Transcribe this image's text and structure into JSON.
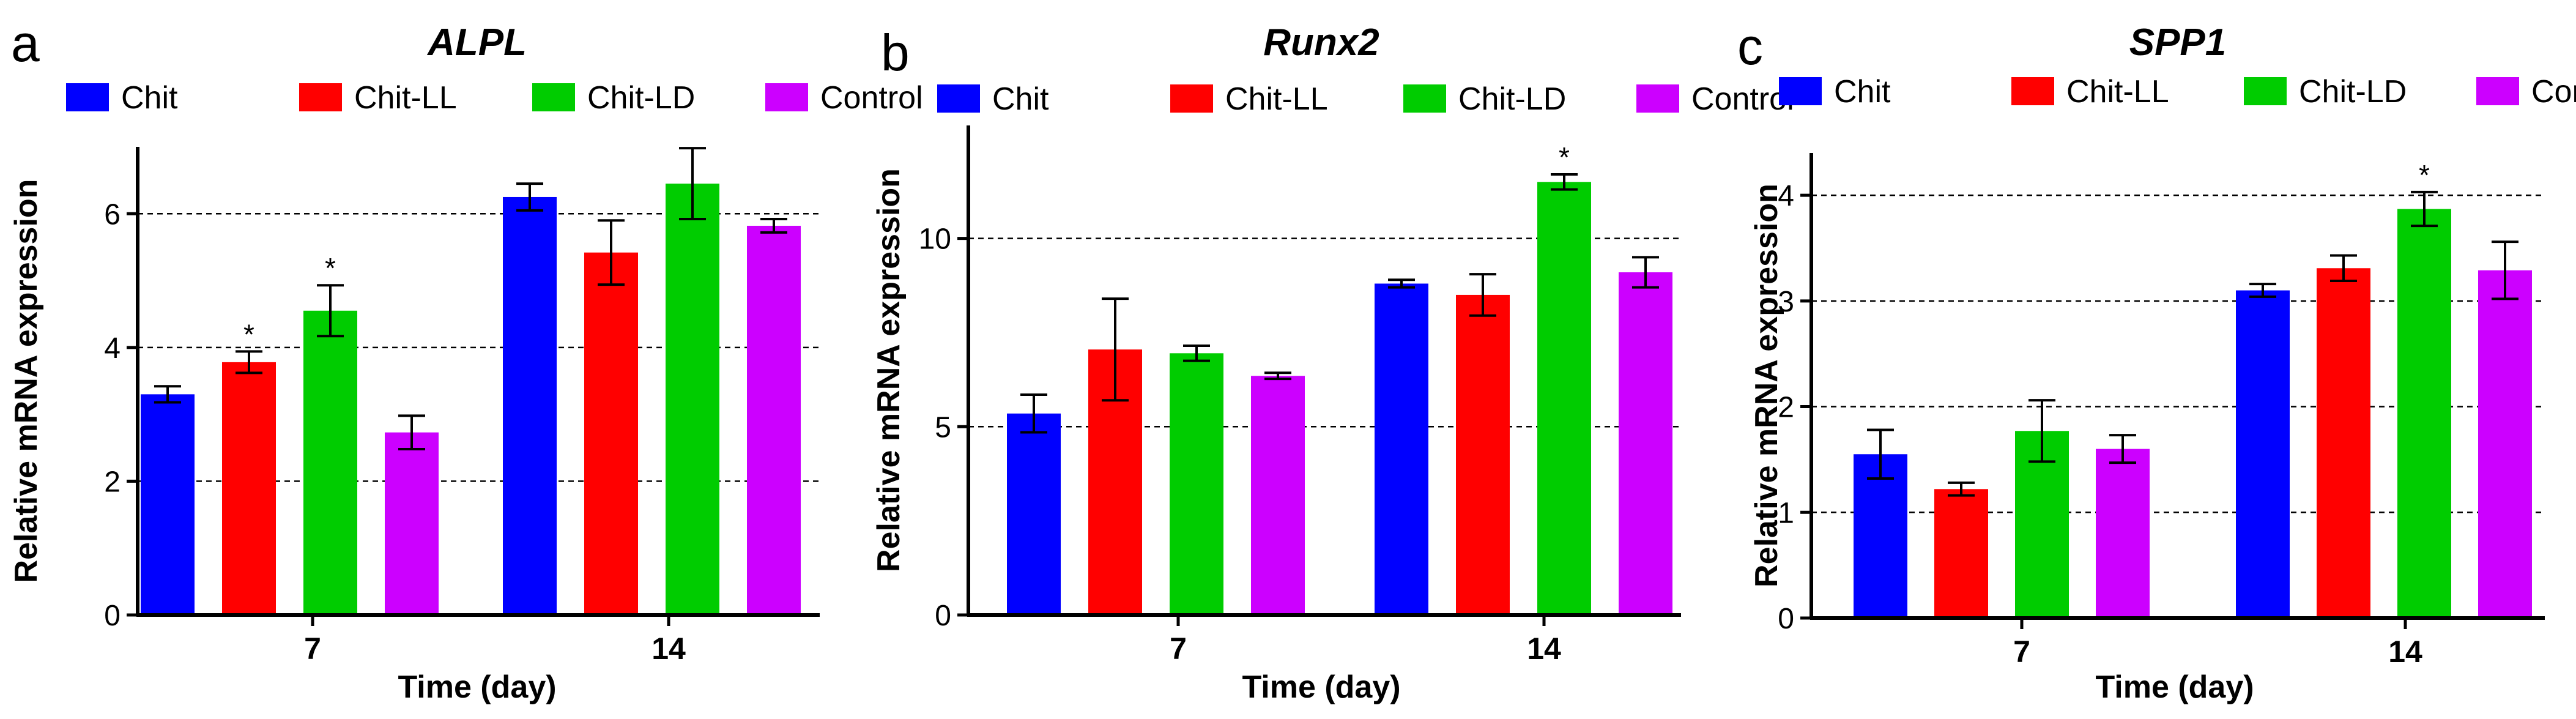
{
  "figure": {
    "series_colors": [
      "#0000FF",
      "#FF0000",
      "#00CC00",
      "#CC00FF"
    ]
  },
  "chart_data": [
    {
      "type": "bar",
      "panel_label": "a",
      "title": "ALPL",
      "xlabel": "Time (day)",
      "ylabel": "Relative mRNA expression",
      "categories": [
        "7",
        "14"
      ],
      "ylim": [
        0,
        7
      ],
      "yticks": [
        0,
        2,
        4,
        6
      ],
      "ytick_labels": [
        "0",
        "2",
        "4",
        "6"
      ],
      "gridlines": [
        2,
        4,
        6
      ],
      "legend_position": "top",
      "series": [
        {
          "name": "Chit",
          "values": [
            3.3,
            6.25
          ],
          "errors": [
            0.12,
            0.2
          ],
          "significant": [
            false,
            false
          ]
        },
        {
          "name": "Chit-LL",
          "values": [
            3.78,
            5.42
          ],
          "errors": [
            0.16,
            0.48
          ],
          "significant": [
            true,
            false
          ]
        },
        {
          "name": "Chit-LD",
          "values": [
            4.55,
            6.45
          ],
          "errors": [
            0.38,
            0.53
          ],
          "significant": [
            true,
            false
          ]
        },
        {
          "name": "Control",
          "values": [
            2.73,
            5.82
          ],
          "errors": [
            0.25,
            0.1
          ],
          "significant": [
            false,
            false
          ]
        }
      ],
      "significance_symbol": "*"
    },
    {
      "type": "bar",
      "panel_label": "b",
      "title": "Runx2",
      "xlabel": "Time (day)",
      "ylabel": "Relative mRNA expression",
      "categories": [
        "7",
        "14"
      ],
      "ylim": [
        0,
        13
      ],
      "yticks": [
        0,
        5,
        10
      ],
      "ytick_labels": [
        "0",
        "5",
        "10"
      ],
      "gridlines": [
        5,
        10
      ],
      "legend_position": "top",
      "series": [
        {
          "name": "Chit",
          "values": [
            5.35,
            8.8
          ],
          "errors": [
            0.5,
            0.1
          ],
          "significant": [
            false,
            false
          ]
        },
        {
          "name": "Chit-LL",
          "values": [
            7.05,
            8.5
          ],
          "errors": [
            1.35,
            0.55
          ],
          "significant": [
            false,
            false
          ]
        },
        {
          "name": "Chit-LD",
          "values": [
            6.95,
            11.5
          ],
          "errors": [
            0.2,
            0.2
          ],
          "significant": [
            false,
            true
          ]
        },
        {
          "name": "Control",
          "values": [
            6.35,
            9.1
          ],
          "errors": [
            0.08,
            0.4
          ],
          "significant": [
            false,
            false
          ]
        }
      ],
      "significance_symbol": "*"
    },
    {
      "type": "bar",
      "panel_label": "c",
      "title": "SPP1",
      "xlabel": "Time (day)",
      "ylabel": "Relative mRNA expression",
      "categories": [
        "7",
        "14"
      ],
      "ylim": [
        0,
        4.4
      ],
      "yticks": [
        0,
        1,
        2,
        3,
        4
      ],
      "ytick_labels": [
        "0",
        "1",
        "2",
        "3",
        "4"
      ],
      "gridlines": [
        1,
        2,
        3,
        4
      ],
      "legend_position": "top",
      "series": [
        {
          "name": "Chit",
          "values": [
            1.55,
            3.1
          ],
          "errors": [
            0.23,
            0.06
          ],
          "significant": [
            false,
            false
          ]
        },
        {
          "name": "Chit-LL",
          "values": [
            1.22,
            3.31
          ],
          "errors": [
            0.06,
            0.12
          ],
          "significant": [
            false,
            false
          ]
        },
        {
          "name": "Chit-LD",
          "values": [
            1.77,
            3.87
          ],
          "errors": [
            0.29,
            0.16
          ],
          "significant": [
            false,
            true
          ]
        },
        {
          "name": "Control",
          "values": [
            1.6,
            3.29
          ],
          "errors": [
            0.13,
            0.27
          ],
          "significant": [
            false,
            false
          ]
        }
      ],
      "significance_symbol": "*"
    }
  ]
}
